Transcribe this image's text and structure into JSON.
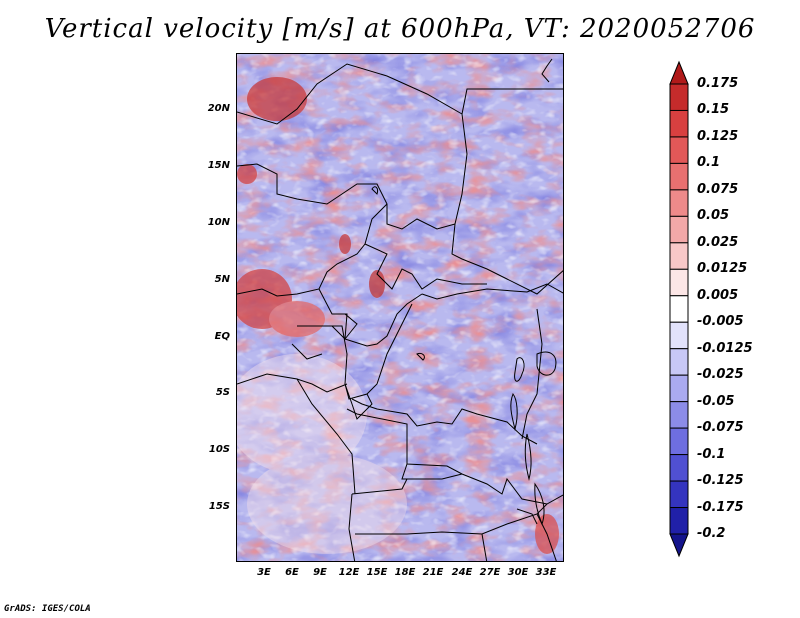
{
  "title": "Vertical velocity [m/s] at 600hPa, VT: 2020052706",
  "credit": "GrADS: IGES/COLA",
  "map": {
    "field": "vertical velocity",
    "level": "600hPa",
    "valid_time": "2020052706",
    "units": "m/s",
    "lat_labels": [
      "20N",
      "15N",
      "10N",
      "5N",
      "EQ",
      "5S",
      "10S",
      "15S"
    ],
    "lat_values": [
      20,
      15,
      10,
      5,
      0,
      -5,
      -10,
      -15
    ],
    "lon_labels": [
      "3E",
      "6E",
      "9E",
      "12E",
      "15E",
      "18E",
      "21E",
      "24E",
      "27E",
      "30E",
      "33E"
    ],
    "lon_values": [
      3,
      6,
      9,
      12,
      15,
      18,
      21,
      24,
      27,
      30,
      33
    ],
    "lon_range": [
      0,
      35
    ],
    "lat_range": [
      -20,
      25
    ]
  },
  "colorbar": {
    "labels": [
      "0.175",
      "0.15",
      "0.125",
      "0.1",
      "0.075",
      "0.05",
      "0.025",
      "0.0125",
      "0.005",
      "-0.005",
      "-0.0125",
      "-0.025",
      "-0.05",
      "-0.075",
      "-0.1",
      "-0.125",
      "-0.175",
      "-0.2"
    ],
    "colors": [
      "#b01a1a",
      "#c52b2b",
      "#d84040",
      "#e25858",
      "#e87070",
      "#ee8a8a",
      "#f3a8a8",
      "#f8c8c8",
      "#fce6e6",
      "#ffffff",
      "#e2e2fb",
      "#c8c8f6",
      "#aaaaf0",
      "#8c8ce8",
      "#6e6ee0",
      "#5050d2",
      "#3434bf",
      "#2020a8",
      "#14148c"
    ]
  }
}
